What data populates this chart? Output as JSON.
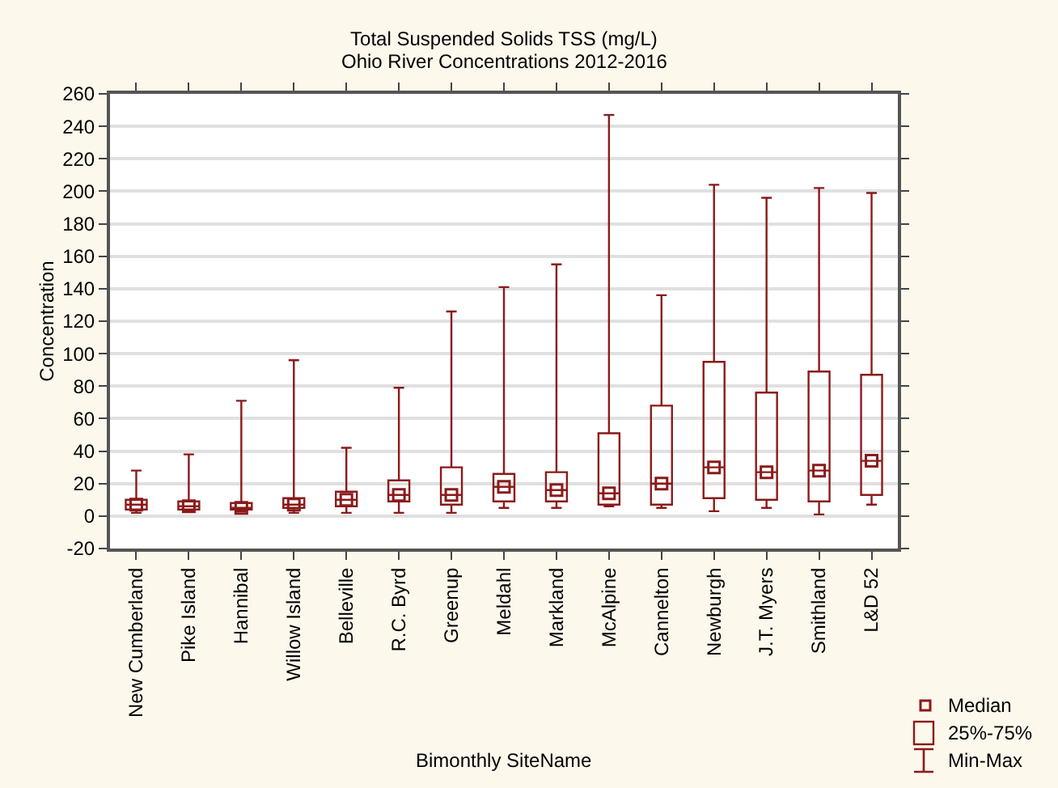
{
  "chart_data": {
    "type": "box",
    "title": "Total Suspended Solids TSS (mg/L)",
    "subtitle": "Ohio River Concentrations 2012-2016",
    "xlabel": "Bimonthly SiteName",
    "ylabel": "Concentration",
    "categories": [
      "New Cumberland",
      "Pike Island",
      "Hannibal",
      "Willow Island",
      "Belleville",
      "R.C. Byrd",
      "Greenup",
      "Meldahl",
      "Markland",
      "McAlpine",
      "Cannelton",
      "Newburgh",
      "J.T. Myers",
      "Smithland",
      "L&D 52"
    ],
    "series": [
      {
        "color": "#8b1a1a",
        "boxes": [
          {
            "low": 2,
            "q1": 4,
            "median": 7,
            "q3": 10,
            "high": 28
          },
          {
            "low": 3,
            "q1": 4,
            "median": 6,
            "q3": 9,
            "high": 38
          },
          {
            "low": 3,
            "q1": 4,
            "median": 5,
            "q3": 8,
            "high": 71
          },
          {
            "low": 2,
            "q1": 5,
            "median": 7,
            "q3": 11,
            "high": 96
          },
          {
            "low": 2,
            "q1": 6,
            "median": 10,
            "q3": 15,
            "high": 42
          },
          {
            "low": 2,
            "q1": 9,
            "median": 13,
            "q3": 22,
            "high": 79
          },
          {
            "low": 2,
            "q1": 7,
            "median": 13,
            "q3": 30,
            "high": 126
          },
          {
            "low": 5,
            "q1": 9,
            "median": 18,
            "q3": 26,
            "high": 141
          },
          {
            "low": 5,
            "q1": 9,
            "median": 16,
            "q3": 27,
            "high": 155
          },
          {
            "low": 6,
            "q1": 7,
            "median": 14,
            "q3": 51,
            "high": 247
          },
          {
            "low": 5,
            "q1": 7,
            "median": 20,
            "q3": 68,
            "high": 136
          },
          {
            "low": 3,
            "q1": 11,
            "median": 30,
            "q3": 95,
            "high": 204
          },
          {
            "low": 5,
            "q1": 10,
            "median": 27,
            "q3": 76,
            "high": 196
          },
          {
            "low": 1,
            "q1": 9,
            "median": 28,
            "q3": 89,
            "high": 202
          },
          {
            "low": 7,
            "q1": 13,
            "median": 34,
            "q3": 87,
            "high": 199
          }
        ]
      },
      {
        "type": "scatter",
        "color": "#8b1a1a",
        "x": [
          "New Cumberland",
          "Pike Island",
          "Hannibal",
          "Willow Island",
          "Belleville",
          "R.C. Byrd",
          "Greenup",
          "Meldahl",
          "Markland",
          "McAlpine",
          "Cannelton",
          "Newburgh",
          "J.T. Myers",
          "Smithland",
          "L&D 52"
        ],
        "values": [
          7,
          6,
          5,
          7,
          10,
          13,
          13,
          18,
          16,
          14,
          20,
          30,
          27,
          28,
          34
        ]
      }
    ],
    "ylim": [
      -20,
      260
    ],
    "yticks": [
      -20,
      0,
      20,
      40,
      60,
      80,
      100,
      120,
      140,
      160,
      180,
      200,
      220,
      240,
      260
    ],
    "grid": "y",
    "marker": "square",
    "annotations": [
      "Median",
      "25%-75%",
      "Min-Max"
    ]
  }
}
